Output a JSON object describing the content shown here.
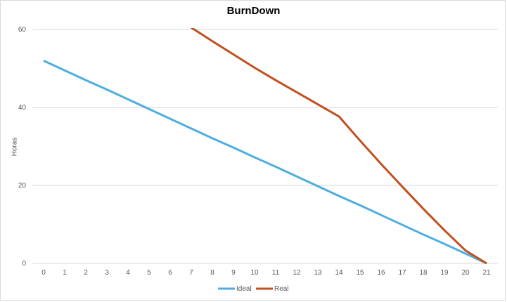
{
  "chart_data": {
    "type": "line",
    "title": "BurnDown",
    "xlabel": "",
    "ylabel": "Horas",
    "categories": [
      0,
      1,
      2,
      3,
      4,
      5,
      6,
      7,
      8,
      9,
      10,
      11,
      12,
      13,
      14,
      15,
      16,
      17,
      18,
      19,
      20,
      21
    ],
    "ylim": [
      0,
      60
    ],
    "yticks": [
      0,
      20,
      40,
      60
    ],
    "grid": true,
    "legend": "bottom",
    "series": [
      {
        "name": "Ideal",
        "color": "#4eaee0",
        "x": [
          0,
          1,
          2,
          3,
          4,
          5,
          6,
          7,
          8,
          9,
          10,
          11,
          12,
          13,
          14,
          15,
          16,
          17,
          18,
          19,
          20,
          21
        ],
        "values": [
          52,
          49.5,
          47,
          44.6,
          42.1,
          39.6,
          37.1,
          34.6,
          32.1,
          29.7,
          27.2,
          24.8,
          22.3,
          19.8,
          17.3,
          14.9,
          12.4,
          9.9,
          7.4,
          5,
          2.5,
          0
        ]
      },
      {
        "name": "Real",
        "color": "#c0501f",
        "x": [
          7,
          8,
          9,
          10,
          11,
          12,
          13,
          14,
          15,
          16,
          17,
          18,
          19,
          20,
          21
        ],
        "values": [
          60.5,
          57,
          53.6,
          50.2,
          47,
          43.9,
          40.8,
          37.7,
          31.5,
          25.5,
          19.7,
          14,
          8.5,
          3.3,
          0
        ]
      }
    ]
  }
}
